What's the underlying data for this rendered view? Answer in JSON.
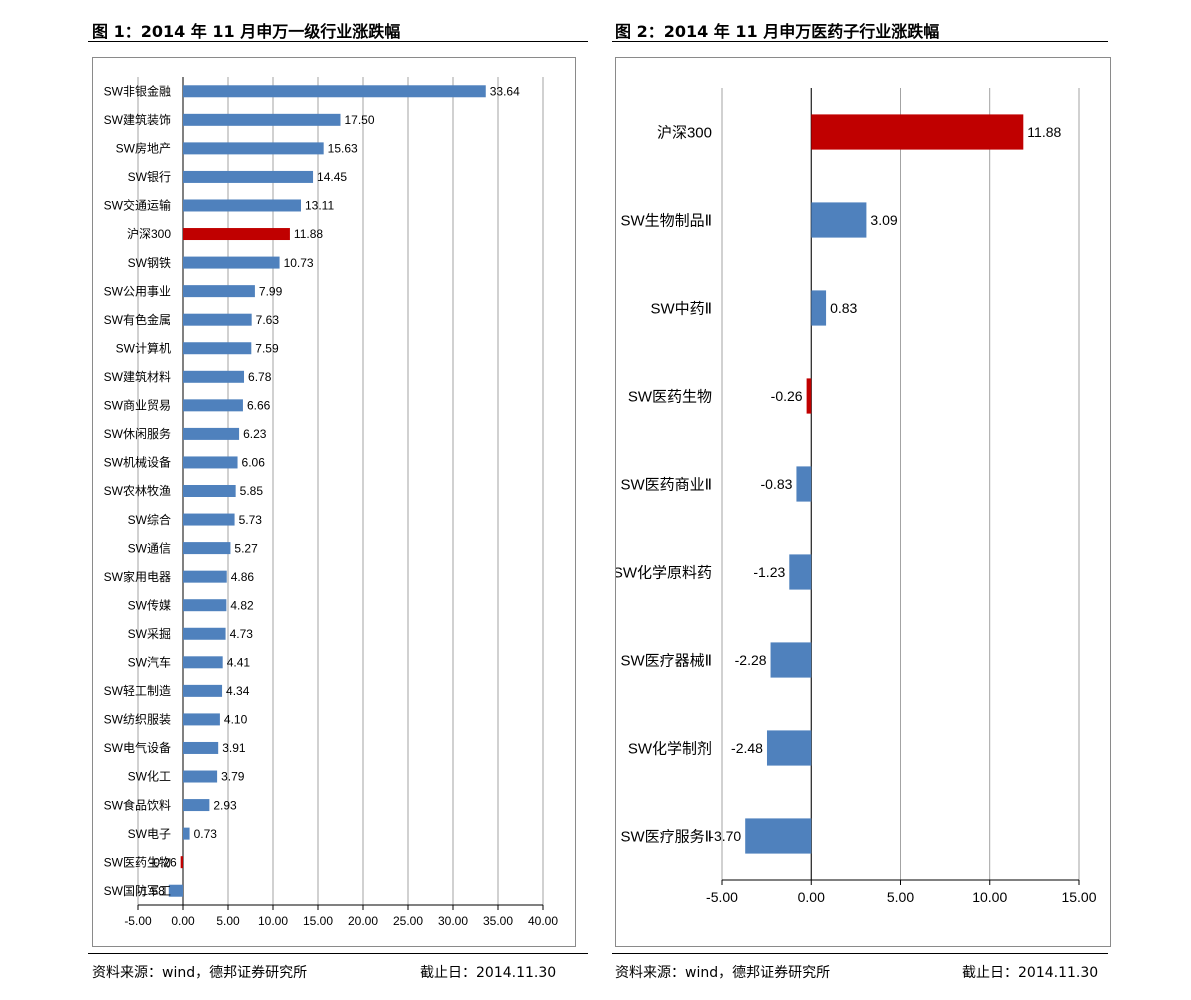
{
  "left": {
    "title": "图 1：2014 年 11 月申万一级行业涨跌幅",
    "source": "资料来源：wind，德邦证券研究所",
    "date": "截止日：2014.11.30"
  },
  "right": {
    "title": "图 2：2014 年 11 月申万医药子行业涨跌幅",
    "source": "资料来源：wind，德邦证券研究所",
    "date": "截止日：2014.11.30"
  },
  "colors": {
    "bar": "#4f81bd",
    "highlight": "#c00000",
    "grid": "#8c8c8c"
  },
  "chart_data": [
    {
      "type": "bar",
      "orientation": "horizontal",
      "categories": [
        "SW非银金融",
        "SW建筑装饰",
        "SW房地产",
        "SW银行",
        "SW交通运输",
        "沪深300",
        "SW钢铁",
        "SW公用事业",
        "SW有色金属",
        "SW计算机",
        "SW建筑材料",
        "SW商业贸易",
        "SW休闲服务",
        "SW机械设备",
        "SW农林牧渔",
        "SW综合",
        "SW通信",
        "SW家用电器",
        "SW传媒",
        "SW采掘",
        "SW汽车",
        "SW轻工制造",
        "SW纺织服装",
        "SW电气设备",
        "SW化工",
        "SW食品饮料",
        "SW电子",
        "SW医药生物",
        "SW国防军工"
      ],
      "values": [
        33.64,
        17.5,
        15.63,
        14.45,
        13.11,
        11.88,
        10.73,
        7.99,
        7.63,
        7.59,
        6.78,
        6.66,
        6.23,
        6.06,
        5.85,
        5.73,
        5.27,
        4.86,
        4.82,
        4.73,
        4.41,
        4.34,
        4.1,
        3.91,
        3.79,
        2.93,
        0.73,
        -0.26,
        -1.58
      ],
      "labels": [
        "33.64",
        "17.50",
        "15.63",
        "14.45",
        "13.11",
        "11.88",
        "10.73",
        "7.99",
        "7.63",
        "7.59",
        "6.78",
        "6.66",
        "6.23",
        "6.06",
        "5.85",
        "5.73",
        "5.27",
        "4.86",
        "4.82",
        "4.73",
        "4.41",
        "4.34",
        "4.10",
        "3.91",
        "3.79",
        "2.93",
        "0.73",
        "-0.26",
        "-1.58"
      ],
      "highlight": [
        "沪深300",
        "SW医药生物"
      ],
      "xlim": [
        -5,
        40
      ],
      "xticks": [
        "-5.00",
        "0.00",
        "5.00",
        "10.00",
        "15.00",
        "20.00",
        "25.00",
        "30.00",
        "35.00",
        "40.00"
      ],
      "grid": true
    },
    {
      "type": "bar",
      "orientation": "horizontal",
      "categories": [
        "沪深300",
        "SW生物制品Ⅱ",
        "SW中药Ⅱ",
        "SW医药生物",
        "SW医药商业Ⅱ",
        "SW化学原料药",
        "SW医疗器械Ⅱ",
        "SW化学制剂",
        "SW医疗服务Ⅱ"
      ],
      "values": [
        11.88,
        3.09,
        0.83,
        -0.26,
        -0.83,
        -1.23,
        -2.28,
        -2.48,
        -3.7
      ],
      "labels": [
        "11.88",
        "3.09",
        "0.83",
        "-0.26",
        "-0.83",
        "-1.23",
        "-2.28",
        "-2.48",
        "-3.70"
      ],
      "highlight": [
        "沪深300",
        "SW医药生物"
      ],
      "xlim": [
        -5,
        15
      ],
      "xticks": [
        "-5.00",
        "0.00",
        "5.00",
        "10.00",
        "15.00"
      ],
      "grid": true
    }
  ]
}
